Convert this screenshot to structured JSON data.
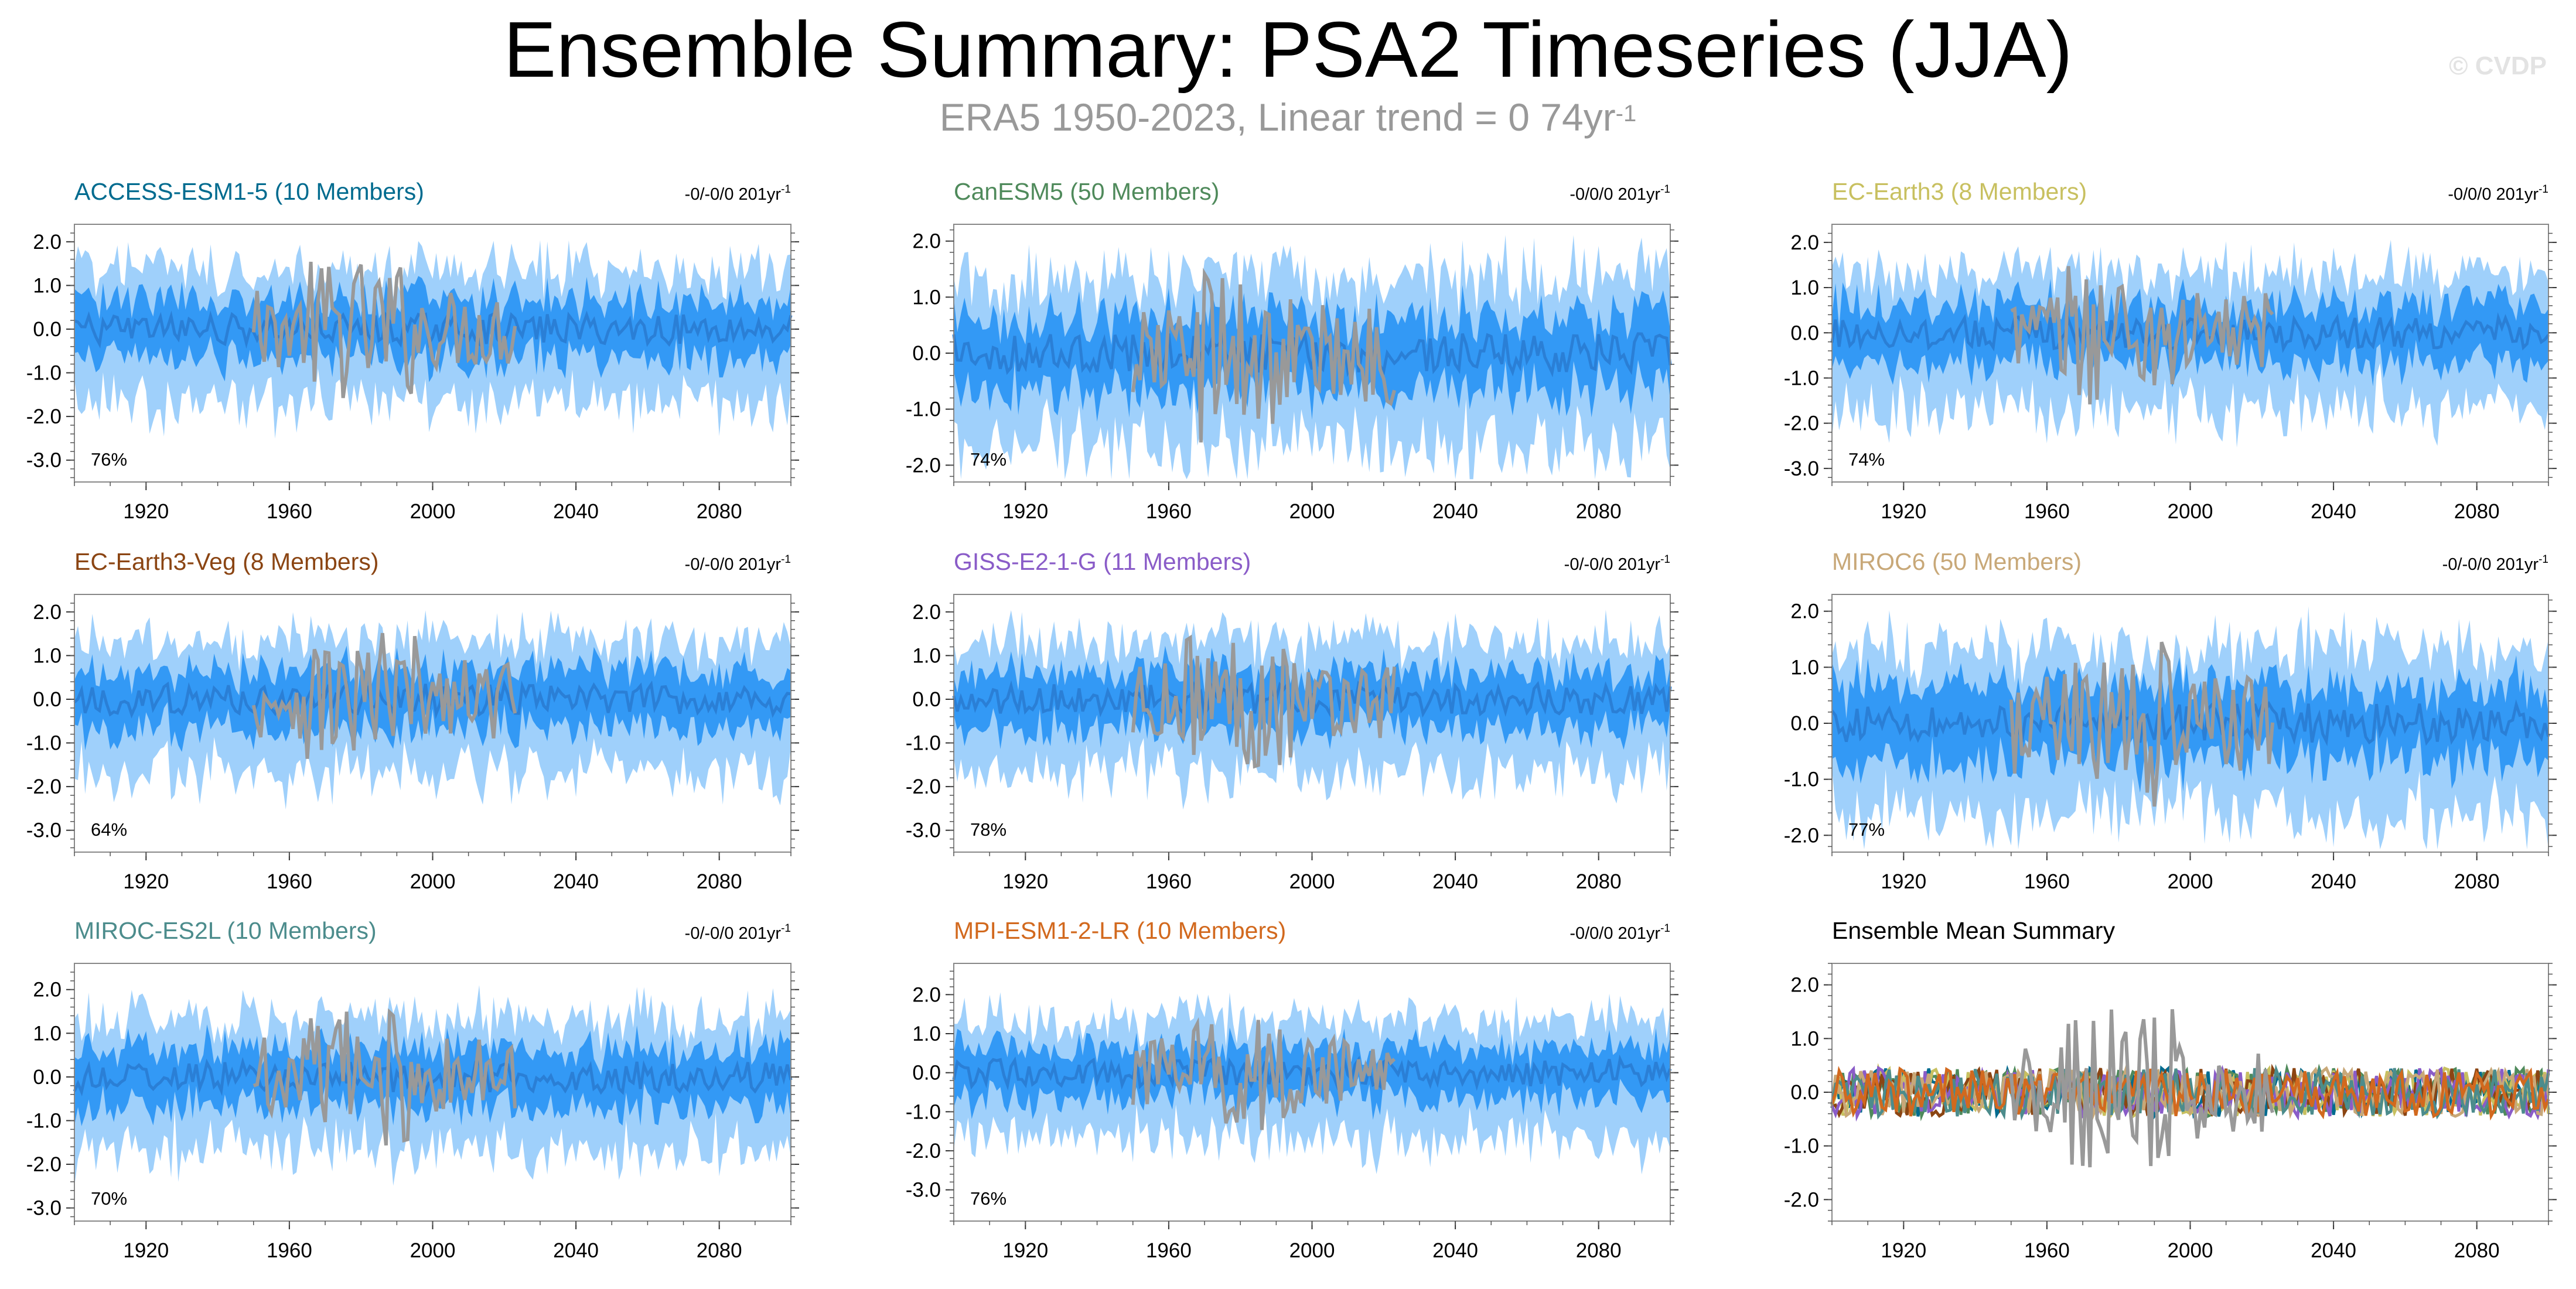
{
  "title": "Ensemble Summary: PSA2 Timeseries (JJA)",
  "subtitle": {
    "text": "ERA5 1950-2023, Linear trend = 0 74yr",
    "unit_sup": "-1"
  },
  "watermark": "© CVDP",
  "colors": {
    "outer_band": "#9fd0fb",
    "inner_band": "#3399f5",
    "ens_mean": "#2a7fd6",
    "observed": "#999999",
    "frame": "#888888"
  },
  "chart_data": [
    {
      "type": "area",
      "title": "ACCESS-ESM1-5 (10 Members)",
      "title_color": "#006b8f",
      "trend_text": "-0/-0/0 201yr",
      "trend_sup": "-1",
      "percent_label": "76%",
      "xlim": [
        1900,
        2100
      ],
      "xticks": [
        1920,
        1960,
        2000,
        2040,
        2080
      ],
      "ylim": [
        -3.5,
        2.4
      ],
      "yticks": [
        2.0,
        1.0,
        0.0,
        -1.0,
        -2.0,
        -3.0
      ],
      "ytick_labels": [
        "2.0",
        "1.0",
        "0.0",
        "-1.0",
        "-2.0",
        "-3.0"
      ],
      "series": [
        {
          "name": "observed",
          "x_range": [
            1950,
            2023
          ]
        },
        {
          "name": "ensemble mean"
        }
      ]
    },
    {
      "type": "area",
      "title": "CanESM5 (50 Members)",
      "title_color": "#4f8a5b",
      "trend_text": "-0/0/0 201yr",
      "trend_sup": "-1",
      "percent_label": "74%",
      "xlim": [
        1900,
        2100
      ],
      "xticks": [
        1920,
        1960,
        2000,
        2040,
        2080
      ],
      "ylim": [
        -2.3,
        2.3
      ],
      "yticks": [
        2.0,
        1.0,
        0.0,
        -1.0,
        -2.0
      ],
      "ytick_labels": [
        "2.0",
        "1.0",
        "0.0",
        "-1.0",
        "-2.0"
      ],
      "series": [
        {
          "name": "observed",
          "x_range": [
            1950,
            2023
          ]
        },
        {
          "name": "ensemble mean"
        }
      ]
    },
    {
      "type": "area",
      "title": "EC-Earth3 (8 Members)",
      "title_color": "#c8c060",
      "trend_text": "-0/0/0 201yr",
      "trend_sup": "-1",
      "percent_label": "74%",
      "xlim": [
        1900,
        2100
      ],
      "xticks": [
        1920,
        1960,
        2000,
        2040,
        2080
      ],
      "ylim": [
        -3.3,
        2.4
      ],
      "yticks": [
        2.0,
        1.0,
        0.0,
        -1.0,
        -2.0,
        -3.0
      ],
      "ytick_labels": [
        "2.0",
        "1.0",
        "0.0",
        "-1.0",
        "-2.0",
        "-3.0"
      ],
      "series": [
        {
          "name": "observed",
          "x_range": [
            1950,
            2023
          ]
        },
        {
          "name": "ensemble mean"
        }
      ]
    },
    {
      "type": "area",
      "title": "EC-Earth3-Veg (8 Members)",
      "title_color": "#8b4513",
      "trend_text": "-0/-0/0 201yr",
      "trend_sup": "-1",
      "percent_label": "64%",
      "xlim": [
        1900,
        2100
      ],
      "xticks": [
        1920,
        1960,
        2000,
        2040,
        2080
      ],
      "ylim": [
        -3.5,
        2.4
      ],
      "yticks": [
        2.0,
        1.0,
        0.0,
        -1.0,
        -2.0,
        -3.0
      ],
      "ytick_labels": [
        "2.0",
        "1.0",
        "0.0",
        "-1.0",
        "-2.0",
        "-3.0"
      ],
      "series": [
        {
          "name": "observed",
          "x_range": [
            1950,
            2023
          ]
        },
        {
          "name": "ensemble mean"
        }
      ]
    },
    {
      "type": "area",
      "title": "GISS-E2-1-G (11 Members)",
      "title_color": "#8a5cc8",
      "trend_text": "-0/-0/0 201yr",
      "trend_sup": "-1",
      "percent_label": "78%",
      "xlim": [
        1900,
        2100
      ],
      "xticks": [
        1920,
        1960,
        2000,
        2040,
        2080
      ],
      "ylim": [
        -3.5,
        2.4
      ],
      "yticks": [
        2.0,
        1.0,
        0.0,
        -1.0,
        -2.0,
        -3.0
      ],
      "ytick_labels": [
        "2.0",
        "1.0",
        "0.0",
        "-1.0",
        "-2.0",
        "-3.0"
      ],
      "series": [
        {
          "name": "observed",
          "x_range": [
            1950,
            2023
          ]
        },
        {
          "name": "ensemble mean"
        }
      ]
    },
    {
      "type": "area",
      "title": "MIROC6 (50 Members)",
      "title_color": "#c8a878",
      "trend_text": "-0/-0/0 201yr",
      "trend_sup": "-1",
      "percent_label": "77%",
      "xlim": [
        1900,
        2100
      ],
      "xticks": [
        1920,
        1960,
        2000,
        2040,
        2080
      ],
      "ylim": [
        -2.3,
        2.3
      ],
      "yticks": [
        2.0,
        1.0,
        0.0,
        -1.0,
        -2.0
      ],
      "ytick_labels": [
        "2.0",
        "1.0",
        "0.0",
        "-1.0",
        "-2.0"
      ],
      "series": [
        {
          "name": "observed",
          "x_range": [
            1950,
            2023
          ]
        },
        {
          "name": "ensemble mean"
        }
      ]
    },
    {
      "type": "area",
      "title": "MIROC-ES2L (10 Members)",
      "title_color": "#4c8c8c",
      "trend_text": "-0/-0/0 201yr",
      "trend_sup": "-1",
      "percent_label": "70%",
      "xlim": [
        1900,
        2100
      ],
      "xticks": [
        1920,
        1960,
        2000,
        2040,
        2080
      ],
      "ylim": [
        -3.3,
        2.6
      ],
      "yticks": [
        2.0,
        1.0,
        0.0,
        -1.0,
        -2.0,
        -3.0
      ],
      "ytick_labels": [
        "2.0",
        "1.0",
        "0.0",
        "-1.0",
        "-2.0",
        "-3.0"
      ],
      "series": [
        {
          "name": "observed",
          "x_range": [
            1950,
            2023
          ]
        },
        {
          "name": "ensemble mean"
        }
      ]
    },
    {
      "type": "area",
      "title": "MPI-ESM1-2-LR (10 Members)",
      "title_color": "#d2691e",
      "trend_text": "-0/0/0 201yr",
      "trend_sup": "-1",
      "percent_label": "76%",
      "xlim": [
        1900,
        2100
      ],
      "xticks": [
        1920,
        1960,
        2000,
        2040,
        2080
      ],
      "ylim": [
        -3.8,
        2.8
      ],
      "yticks": [
        2.0,
        1.0,
        0.0,
        -1.0,
        -2.0,
        -3.0
      ],
      "ytick_labels": [
        "2.0",
        "1.0",
        "0.0",
        "-1.0",
        "-2.0",
        "-3.0"
      ],
      "series": [
        {
          "name": "observed",
          "x_range": [
            1950,
            2023
          ]
        },
        {
          "name": "ensemble mean"
        }
      ]
    },
    {
      "type": "line",
      "title": "Ensemble Mean Summary",
      "title_color": "#000000",
      "trend_text": "",
      "trend_sup": "",
      "percent_label": "",
      "xlim": [
        1900,
        2100
      ],
      "xticks": [
        1920,
        1960,
        2000,
        2040,
        2080
      ],
      "ylim": [
        -2.4,
        2.4
      ],
      "yticks": [
        2.0,
        1.0,
        0.0,
        -1.0,
        -2.0
      ],
      "ytick_labels": [
        "2.0",
        "1.0",
        "0.0",
        "-1.0",
        "-2.0"
      ],
      "series": [
        {
          "name": "ACCESS-ESM1-5",
          "color": "#006b8f"
        },
        {
          "name": "CanESM5",
          "color": "#4f8a5b"
        },
        {
          "name": "EC-Earth3",
          "color": "#c8c060"
        },
        {
          "name": "EC-Earth3-Veg",
          "color": "#8b4513"
        },
        {
          "name": "GISS-E2-1-G",
          "color": "#8a5cc8"
        },
        {
          "name": "MIROC6",
          "color": "#c8a878"
        },
        {
          "name": "MIROC-ES2L",
          "color": "#4c8c8c"
        },
        {
          "name": "MPI-ESM1-2-LR",
          "color": "#d2691e"
        },
        {
          "name": "observed",
          "color": "#999999",
          "x_range": [
            1950,
            2023
          ]
        }
      ]
    }
  ]
}
